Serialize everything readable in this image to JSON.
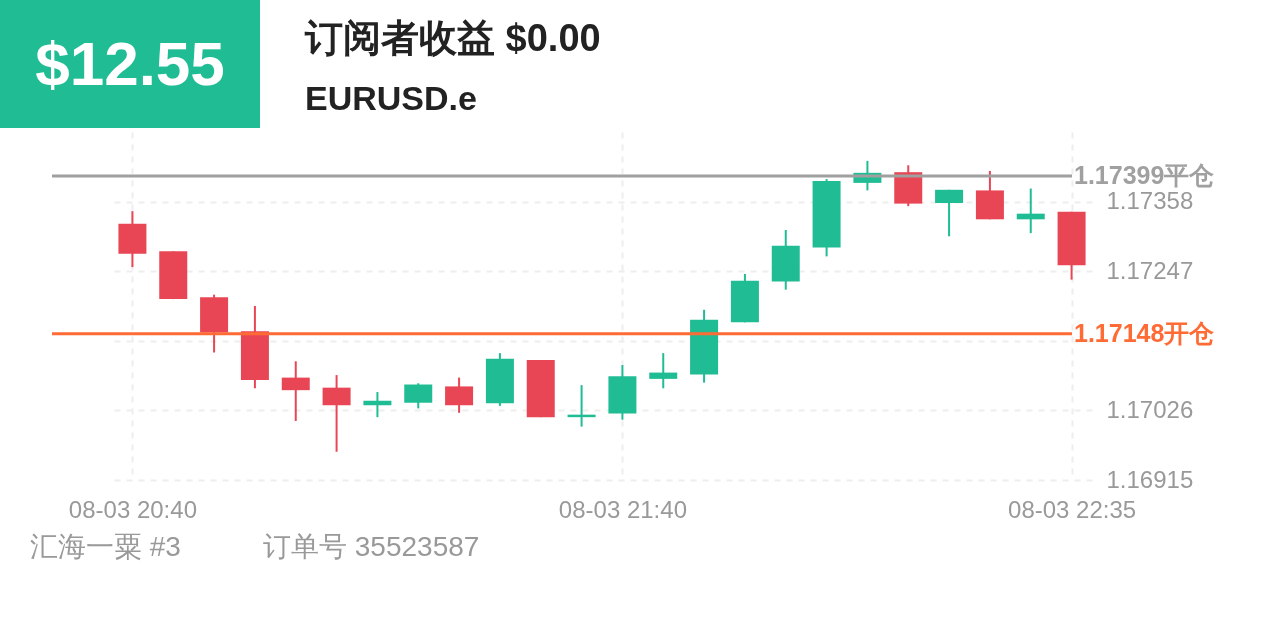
{
  "chart_data": {
    "type": "candlestick",
    "title": "订阅者收益 $0.00",
    "subtitle": "EURUSD.e",
    "annotations": [
      "$12.55",
      "汇海一粟 #3",
      "订单号 35523587"
    ],
    "categories": [
      "08-03 20:40",
      null,
      null,
      null,
      null,
      null,
      null,
      null,
      null,
      null,
      null,
      null,
      "08-03 21:40",
      null,
      null,
      null,
      null,
      null,
      null,
      null,
      null,
      null,
      null,
      "08-03 22:35"
    ],
    "ohlc": [
      [
        1.17323,
        1.17343,
        1.17254,
        1.17275
      ],
      [
        1.17279,
        1.17279,
        1.17203,
        1.17203
      ],
      [
        1.17206,
        1.1721,
        1.17118,
        1.1715
      ],
      [
        1.17152,
        1.17192,
        1.17061,
        1.17074
      ],
      [
        1.17078,
        1.17104,
        1.17009,
        1.17058
      ],
      [
        1.17062,
        1.17082,
        1.1696,
        1.17034
      ],
      [
        1.17034,
        1.17055,
        1.17015,
        1.17041
      ],
      [
        1.17038,
        1.17069,
        1.17029,
        1.17067
      ],
      [
        1.17064,
        1.17078,
        1.17022,
        1.17034
      ],
      [
        1.17037,
        1.17117,
        1.17033,
        1.17108
      ],
      [
        1.17106,
        1.17106,
        1.17015,
        1.17015
      ],
      [
        1.17015,
        1.17066,
        1.17,
        1.17019
      ],
      [
        1.17021,
        1.17098,
        1.17011,
        1.1708
      ],
      [
        1.17076,
        1.17117,
        1.17061,
        1.17086
      ],
      [
        1.17083,
        1.17186,
        1.1707,
        1.1717
      ],
      [
        1.17166,
        1.17243,
        1.17166,
        1.17232
      ],
      [
        1.17231,
        1.17313,
        1.17218,
        1.17288
      ],
      [
        1.17285,
        1.17394,
        1.17271,
        1.17391
      ],
      [
        1.17388,
        1.17423,
        1.17376,
        1.17404
      ],
      [
        1.17405,
        1.17416,
        1.17351,
        1.17355
      ],
      [
        1.17356,
        1.17377,
        1.17303,
        1.17377
      ],
      [
        1.17376,
        1.17407,
        1.1733,
        1.1733
      ],
      [
        1.1733,
        1.17379,
        1.17308,
        1.17339
      ],
      [
        1.17342,
        1.17342,
        1.17234,
        1.17257
      ]
    ],
    "colors": [
      "#e84655",
      "#e84655",
      "#e84655",
      "#e84655",
      "#e84655",
      "#e84655",
      "#20bc94",
      "#20bc94",
      "#e84655",
      "#20bc94",
      "#e84655",
      "#20bc94",
      "#20bc94",
      "#20bc94",
      "#20bc94",
      "#20bc94",
      "#20bc94",
      "#20bc94",
      "#20bc94",
      "#e84655",
      "#20bc94",
      "#e84655",
      "#20bc94",
      "#e84655"
    ],
    "ylim": [
      1.16915,
      1.17469
    ],
    "yticks": [
      1.16915,
      1.17026,
      {
        "value": 1.17137,
        "label": null
      },
      1.17247,
      1.17358
    ],
    "ref_lines": [
      {
        "axis": "y",
        "value": 1.17399,
        "label": "1.17399平仓",
        "color": "#a0a0a0"
      },
      {
        "axis": "y",
        "value": 1.17148,
        "label": "1.17148开仓",
        "color": "#ff6b35"
      }
    ],
    "grid": true
  }
}
